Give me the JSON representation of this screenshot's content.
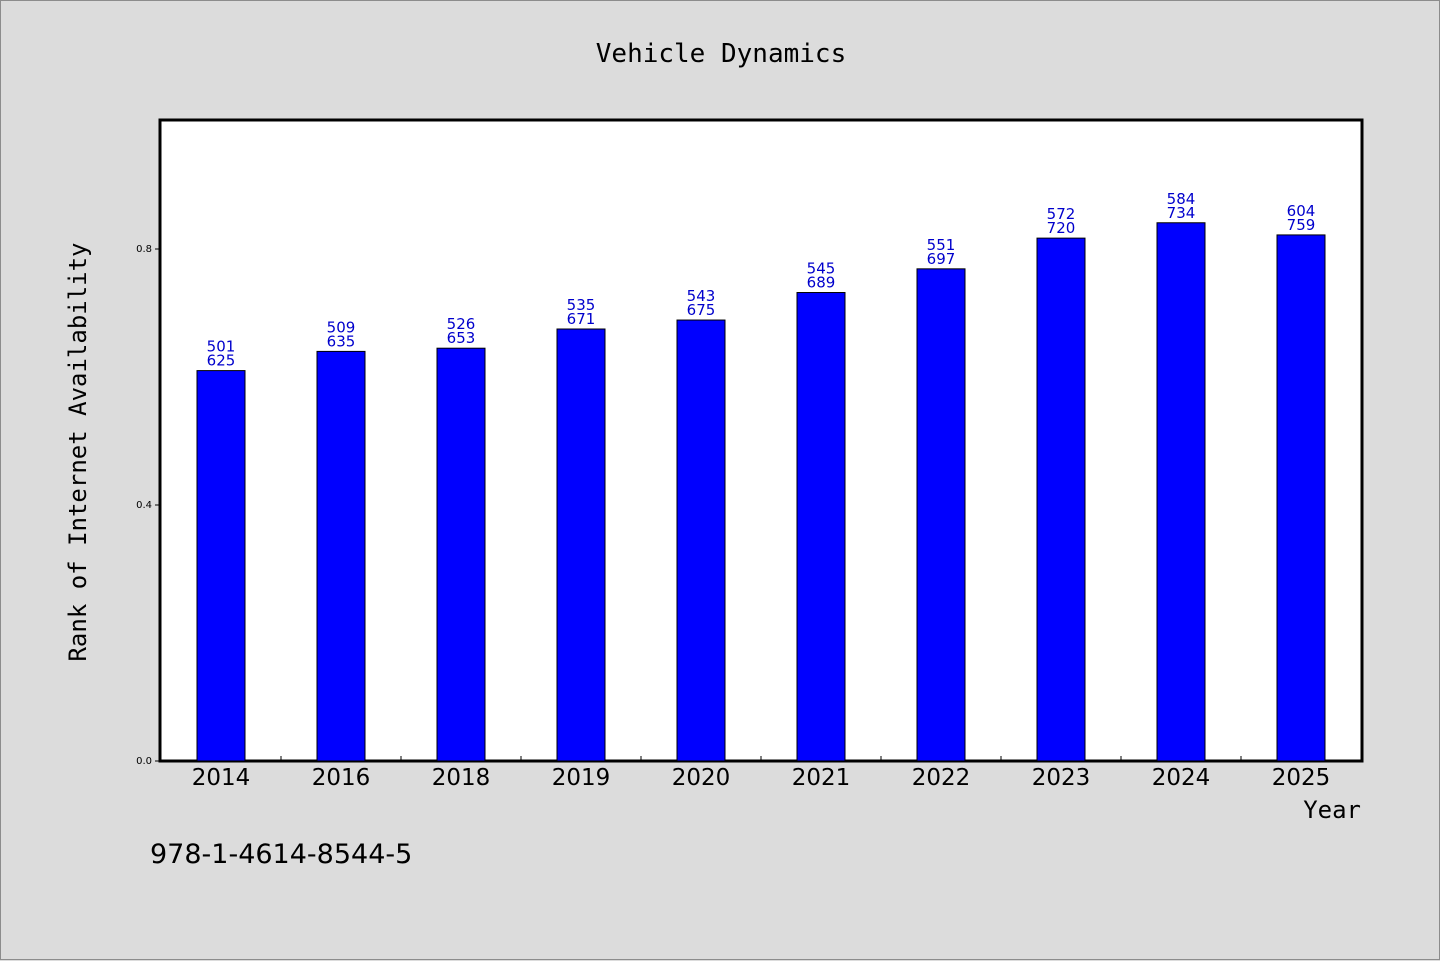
{
  "chart_data": {
    "type": "bar",
    "title": "Vehicle Dynamics",
    "xlabel": "Year",
    "ylabel": "Rank of Internet Availability",
    "categories": [
      "2014",
      "2016",
      "2018",
      "2019",
      "2020",
      "2021",
      "2022",
      "2023",
      "2024",
      "2025"
    ],
    "values": [
      0.61,
      0.64,
      0.645,
      0.675,
      0.689,
      0.732,
      0.769,
      0.817,
      0.841,
      0.822
    ],
    "labels": [
      [
        "501",
        "625"
      ],
      [
        "509",
        "635"
      ],
      [
        "526",
        "653"
      ],
      [
        "535",
        "671"
      ],
      [
        "543",
        "675"
      ],
      [
        "545",
        "689"
      ],
      [
        "551",
        "697"
      ],
      [
        "572",
        "720"
      ],
      [
        "584",
        "734"
      ],
      [
        "604",
        "759"
      ]
    ],
    "ylim": [
      0,
      1.0
    ],
    "yticks": [
      "0.0",
      "0.4",
      "0.8"
    ],
    "grid": false,
    "bar_color": "#0000ff",
    "label_color": "#0000cc"
  },
  "footer_text": "978-1-4614-8544-5"
}
